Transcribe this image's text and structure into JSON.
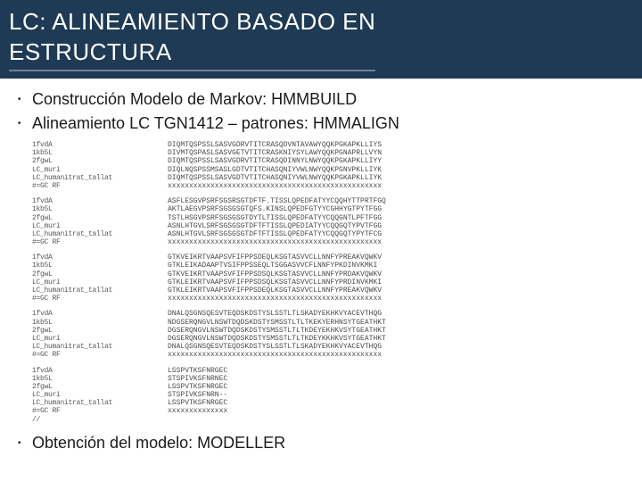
{
  "header": {
    "title_line1": "LC: ALINEAMIENTO BASADO EN",
    "title_line2": "ESTRUCTURA"
  },
  "bullets": {
    "item1": "Construcción Modelo de Markov: HMMBUILD",
    "item2": "Alineamiento LC TGN1412 – patrones: HMMALIGN",
    "item3": "Obtención del modelo: MODELLER"
  },
  "alignment": {
    "group1": {
      "labels": "1fvdA\n1kb5L\n2fgwL\nLC_muri\nLC_humanitrat_tallat\n#=GC RF",
      "data": "DIQMTQSPSSLSASVGDRVTITCRASQDVNTAVAWYQQKPGKAPKLLIYS\nDIVMTQSPASLSASVGETVTITCRASKNIYSYLAWYQQKPGNAPRLLVYN\nDIQMTQSPSSLSASVGDRVTITCRASQDINNYLNWYQQKPGKAPKLLIYY\nDIQLNQSPSSMSASLGDTVTITCHASQNIYVWLNWYQQKPGNVPKLLIYK\nDIQMTQSPSSLSASVGDTVTITCHASQNIYVWLNWYQQKPGKAPKLLIYK\nxxxxxxxxxxxxxxxxxxxxxxxxxxxxxxxxxxxxxxxxxxxxxxxxxx"
    },
    "group2": {
      "labels": "1fvdA\n1kb5L\n2fgwL\nLC_muri\nLC_humanitrat_tallat\n#=GC RF",
      "data": "ASFLESGVPSRFSGSRSGTDFTF.TISSLQPEDFATYYCQQHYTTPRTFGQ\nAKTLAEGVPSRFSGSGSGTQFS.KINSLQPEDFGTYYCGHHYGTPYTFGG\nTSTLHSGVPSRFSGSGSGTDYTLTISSLQPEDFATYYCQQGNTLPFTFGG\nASNLHTGVLSRFSGSGSGTDFTFTISSLQPEDIATYYCQQGQTYPVTFGG\nASNLHTGVLSRFSGSGSGTDFTFTISSLQPEDFATYYCQQGQTYPYTFCG\nxxxxxxxxxxxxxxxxxxxxxxxxxxxxxxxxxxxxxxxxxxxxxxxxxx"
    },
    "group3": {
      "labels": "1fvdA\n1kb5L\n2fgwL\nLC_muri\nLC_humanitrat_tallat\n#=GC RF",
      "data": "GTKVEIKRTVAAPSVFIFPPSDEQLKSGTASVVCLLNNFYPREAKVQWKV\nGTKLEIKADAAPTVSIFPPSSEQLTSGGASVVCFLNNFYPKDINVKMKI\nGTKVEIKRTVAAPSVFIFPPSDSQLKSGTASVVCLLNNFYPRDAKVQWKV\nGTKLEIKRTVAAPSVFIFPPSDSQLKSGTASVVCLLNNFYPRDINVKMKI\nGTKLEIKRTVAAPSVFIFPPSDEQLKSGTASVVCLLNNFYPREAKVQWKV\nxxxxxxxxxxxxxxxxxxxxxxxxxxxxxxxxxxxxxxxxxxxxxxxxxx"
    },
    "group4": {
      "labels": "1fvdA\n1kb5L\n2fgwL\nLC_muri\nLC_humanitrat_tallat\n#=GC RF",
      "data": "DNALQSGNSQESVTEQDSKDSTYSLSSTLTLSKADYEKHKVYACEVTHQG\nNDGSERQNGVLNSWTDQDSKDSTYSMSSTLTLTKEKYERHNSYTGEATHKT\nDGSERQNGVLNSWTDQDSKDSTYSMSSTLTLTKDEYEKHKVSYTGEATHKT\nDGSERQNGVLNSWTDQDSKDSTYSMSSTLTLTKDEYKKHKVSYTGEATHKT\nDNALQSGNSQESVTEQDSKDSTYSLSSTLTLSKADYEKHKVYACEVTHQG\nxxxxxxxxxxxxxxxxxxxxxxxxxxxxxxxxxxxxxxxxxxxxxxxxxx"
    },
    "group5": {
      "labels": "1fvdA\n1kb5L\n2fgwL\nLC_muri\nLC_humanitrat_tallat\n#=GC RF\n//",
      "data": "LSSPVTKSFNRGEC\nSTSPIVKSFNRNEC\nLSSPVTKSFNRGEC\nSTSPIVKSFNRN--\nLSSPVTKSFNRGEC\nxxxxxxxxxxxxxx"
    }
  },
  "styling": {
    "header_bg": "#1f3a54",
    "title_color": "#ffffff",
    "title_fontsize": 26,
    "bullet_fontsize": 18,
    "seq_fontsize": 8,
    "seq_color": "#4a4a4a",
    "underline_color": "#6b8199"
  }
}
